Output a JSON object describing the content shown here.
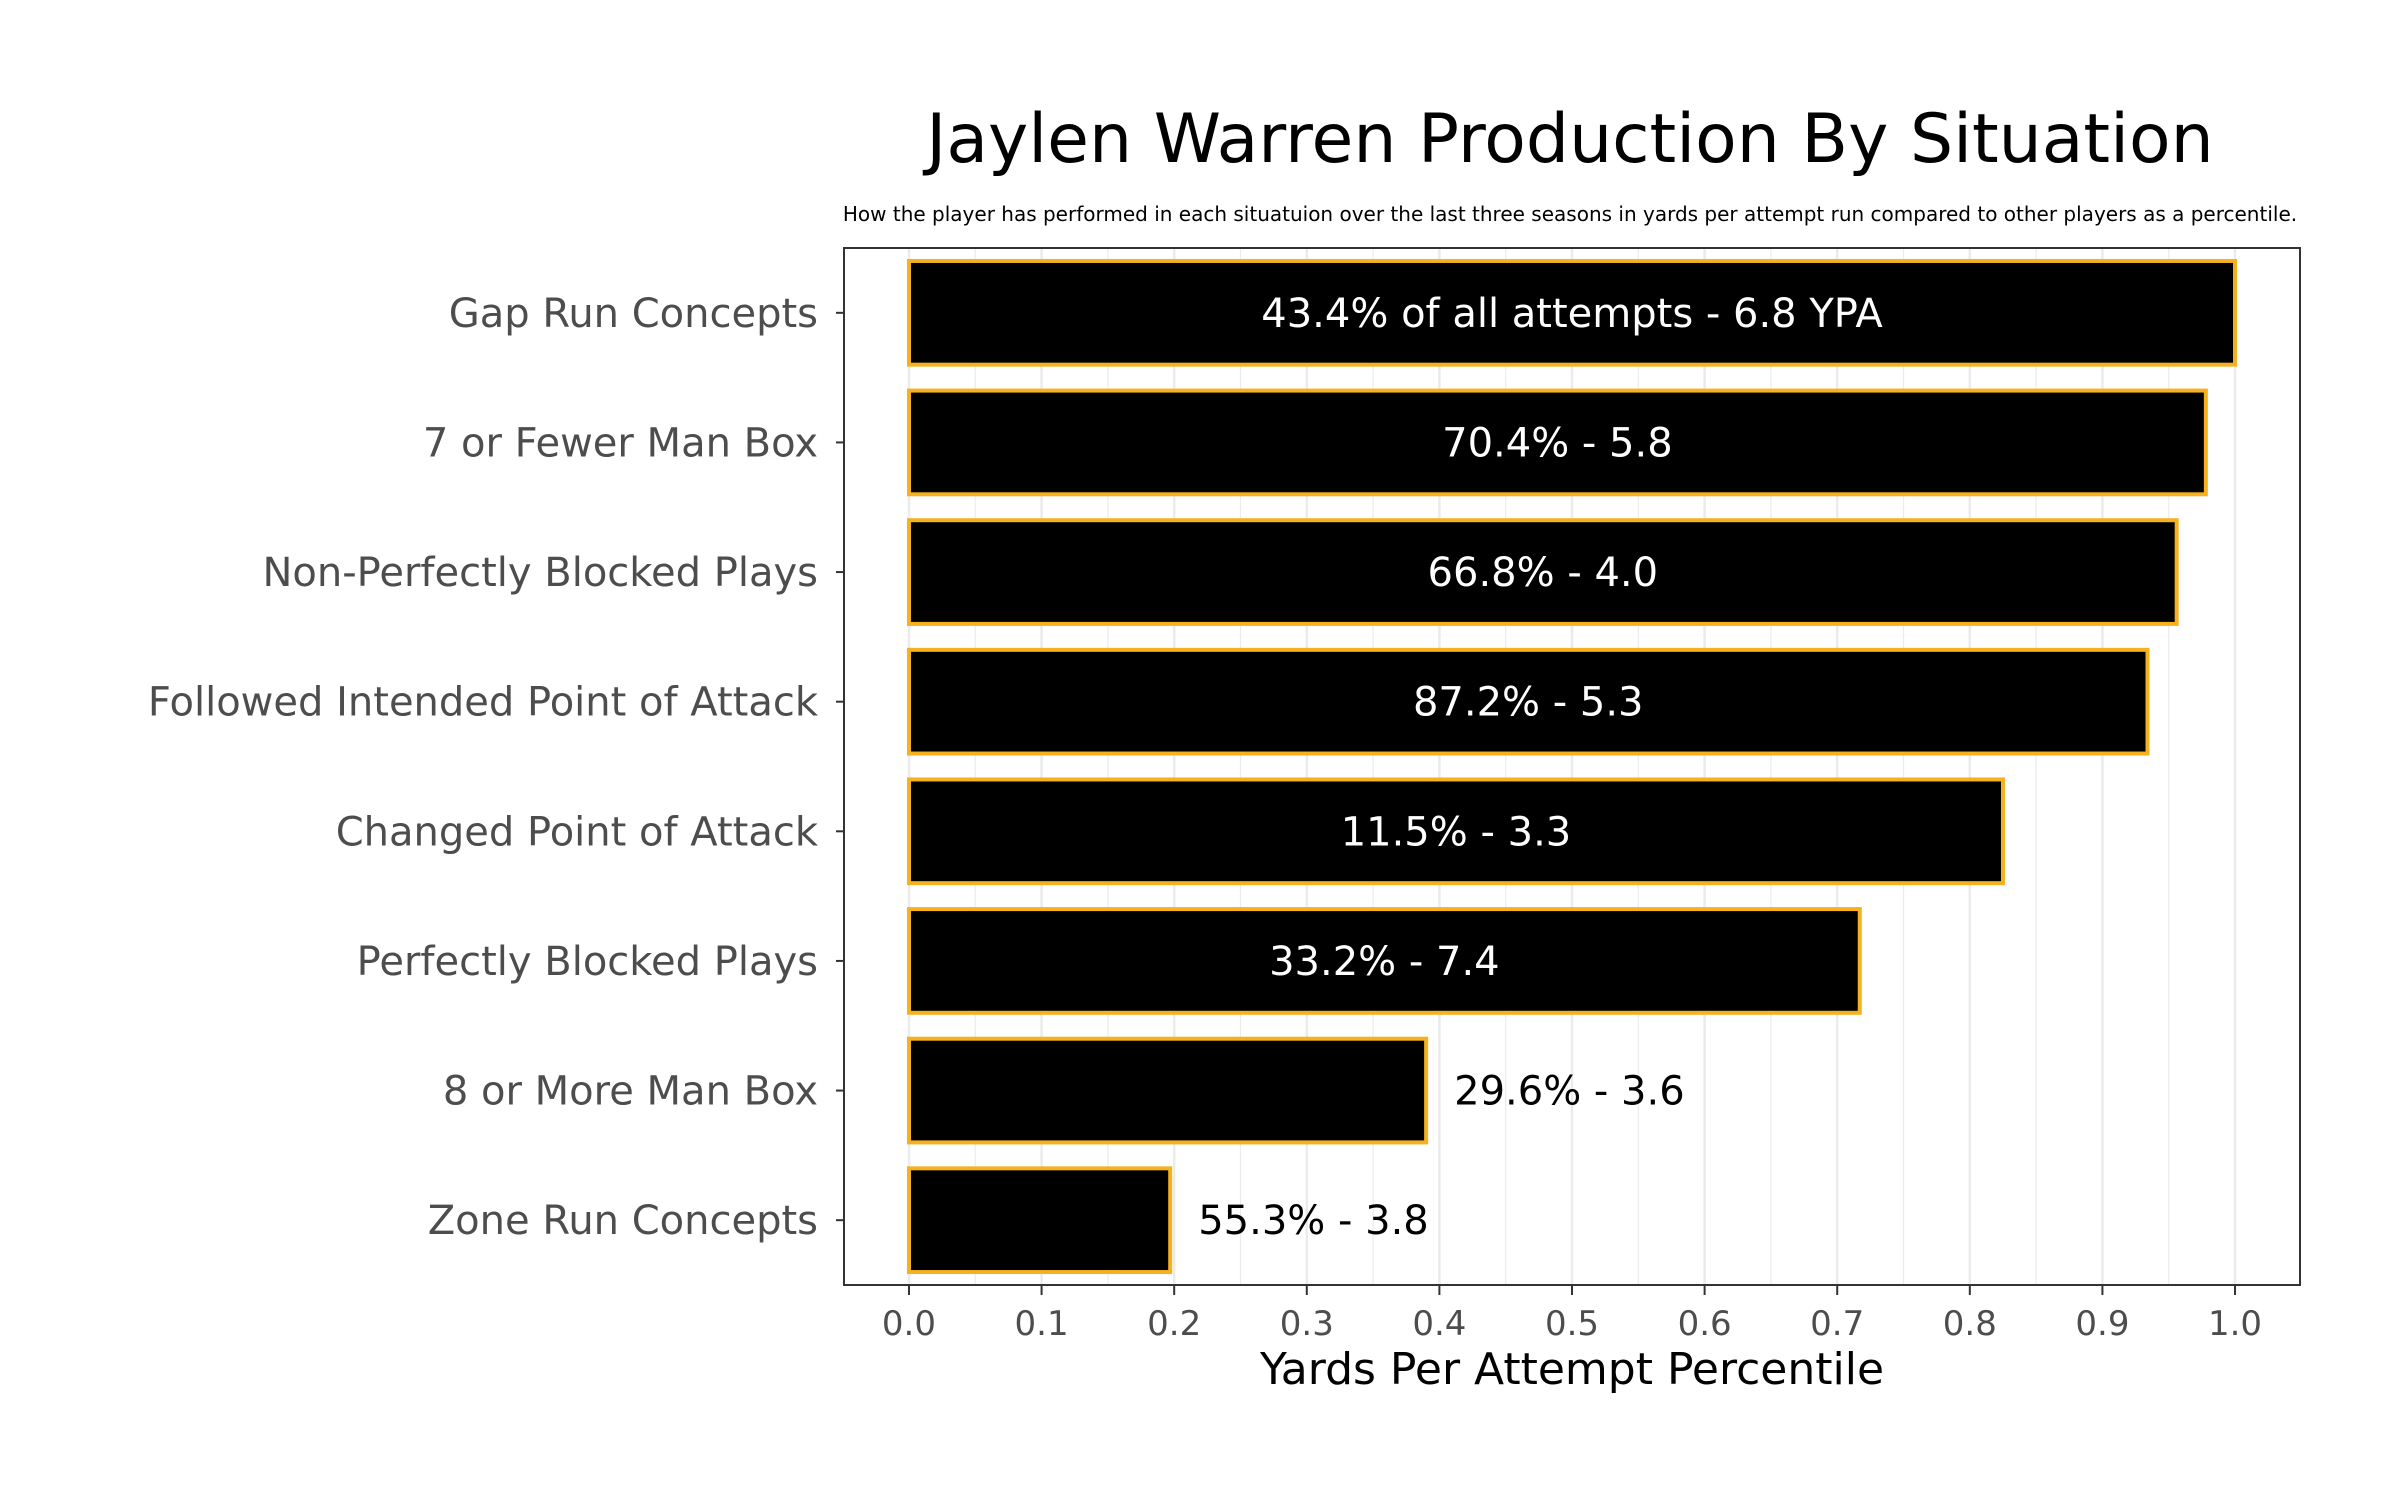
{
  "chart_data": {
    "type": "bar",
    "orientation": "horizontal",
    "title": "Jaylen Warren Production By Situation",
    "subtitle": "How the player has performed in each situatuion over the last three seasons in yards per attempt run compared to other players as a percentile.",
    "xlabel": "Yards Per Attempt Percentile",
    "ylabel": "",
    "xlim": [
      -0.049,
      1.049
    ],
    "xticks": [
      "0.0",
      "0.1",
      "0.2",
      "0.3",
      "0.4",
      "0.5",
      "0.6",
      "0.7",
      "0.8",
      "0.9",
      "1.0"
    ],
    "grid": true,
    "categories": [
      "Gap Run Concepts",
      "7 or Fewer Man Box",
      "Non-Perfectly Blocked Plays",
      "Followed Intended Point of Attack",
      "Changed Point of Attack",
      "Perfectly Blocked Plays",
      "8 or More Man Box",
      "Zone Run Concepts"
    ],
    "values": [
      1.0,
      0.978,
      0.956,
      0.934,
      0.825,
      0.717,
      0.39,
      0.197
    ],
    "labels": [
      "43.4% of all attempts - 6.8 YPA",
      "70.4% - 5.8",
      "66.8% - 4.0",
      "87.2% - 5.3",
      "11.5% - 3.3",
      "33.2% - 7.4",
      "29.6% - 3.6",
      "55.3% - 3.8"
    ],
    "colors": {
      "bar_fill": "#000000",
      "bar_edge": "#F5B21E",
      "grid": "#EBEBEB",
      "axis_text": "#4D4D4D",
      "label_inside": "#FFFFFF",
      "label_outside": "#000000"
    }
  }
}
